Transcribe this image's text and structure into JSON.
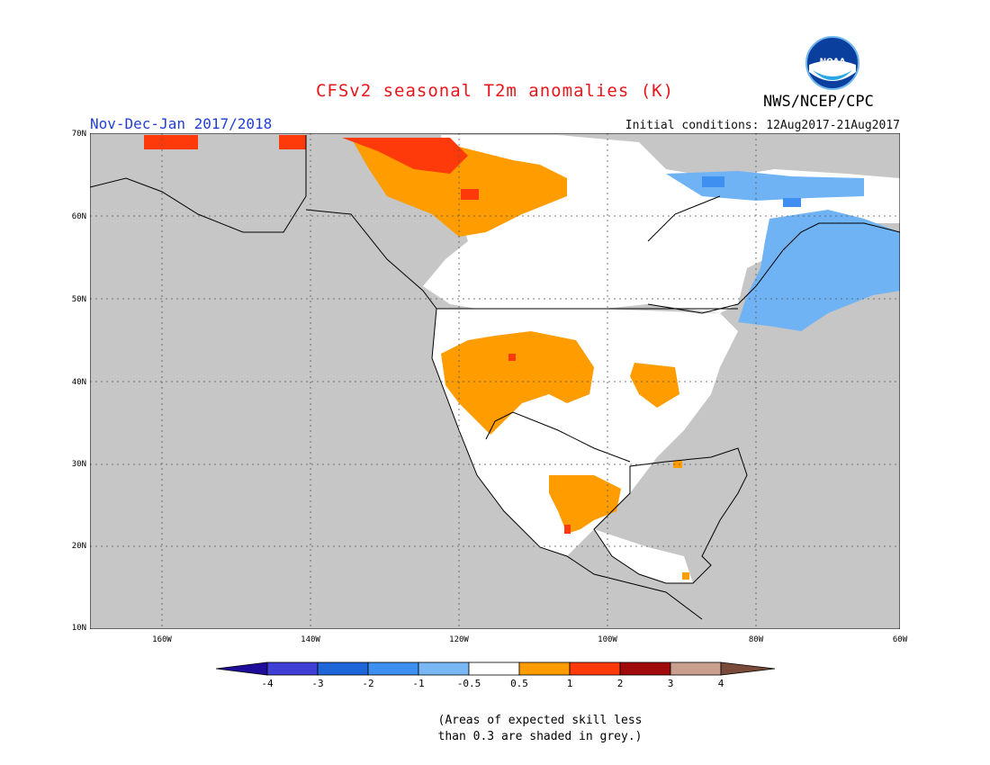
{
  "header": {
    "title": "CFSv2 seasonal T2m anomalies (K)",
    "period": "Nov-Dec-Jan 2017/2018",
    "initial_conditions": "Initial conditions: 12Aug2017-21Aug2017",
    "agency": "NWS/NCEP/CPC",
    "logo_text": "NOAA"
  },
  "map": {
    "lat_labels": [
      "70N",
      "60N",
      "50N",
      "40N",
      "30N",
      "20N",
      "10N"
    ],
    "lon_labels": [
      "160W",
      "140W",
      "120W",
      "100W",
      "80W",
      "60W"
    ],
    "colors": {
      "ocean": "#c6c6c6",
      "warm_05_1": "#ff9c00",
      "warm_1_2": "#ff3a0a",
      "cool_05_1": "#6fb3f5",
      "cool_1_2": "#3e8ff0",
      "neutral": "#ffffff"
    }
  },
  "colorbar": {
    "labels": [
      "-4",
      "-3",
      "-2",
      "-1",
      "-0.5",
      "0.5",
      "1",
      "2",
      "3",
      "4"
    ],
    "colors": [
      "#1e0c9a",
      "#3f3fd6",
      "#1f66d8",
      "#3f8ff0",
      "#7ab8f5",
      "#ffffff",
      "#ff9c00",
      "#ff3a0a",
      "#a00a0a",
      "#c9a08e",
      "#7a4a3a"
    ]
  },
  "note": {
    "line1": "(Areas of expected skill less",
    "line2": "than 0.3 are shaded in grey.)"
  }
}
